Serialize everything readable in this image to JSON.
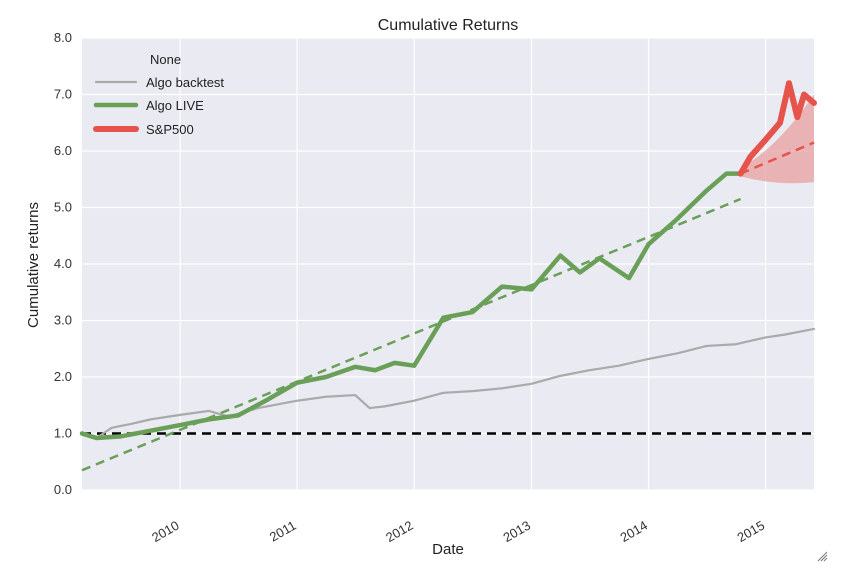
{
  "chart_data": {
    "type": "line",
    "title": "Cumulative Returns",
    "xlabel": "Date",
    "ylabel": "Cumulative returns",
    "xlim": [
      "2009-03-01",
      "2015-06-01"
    ],
    "ylim": [
      0,
      8
    ],
    "yticks": [
      "0.0",
      "1.0",
      "2.0",
      "3.0",
      "4.0",
      "5.0",
      "6.0",
      "7.0",
      "8.0"
    ],
    "xticks": [
      {
        "date": "2010-01-01",
        "label": "2010"
      },
      {
        "date": "2011-01-01",
        "label": "2011"
      },
      {
        "date": "2012-01-01",
        "label": "2012"
      },
      {
        "date": "2013-01-01",
        "label": "2013"
      },
      {
        "date": "2014-01-01",
        "label": "2014"
      },
      {
        "date": "2015-01-01",
        "label": "2015"
      }
    ],
    "grid": true,
    "legend": {
      "title": "None",
      "position": "top-left"
    },
    "colors": {
      "background": "#eaeaf2",
      "grid": "#ffffff",
      "backtest": "#aaaaaa",
      "live": "#6a9f58",
      "sp500": "#e5534b",
      "band": "#e8a0a0",
      "baseline": "#000000"
    },
    "series": [
      {
        "name": "Algo backtest",
        "points": [
          [
            "2009-03-01",
            1.02
          ],
          [
            "2009-04-15",
            0.92
          ],
          [
            "2009-06-01",
            1.1
          ],
          [
            "2009-08-01",
            1.17
          ],
          [
            "2009-10-01",
            1.25
          ],
          [
            "2010-01-01",
            1.33
          ],
          [
            "2010-04-01",
            1.4
          ],
          [
            "2010-06-01",
            1.3
          ],
          [
            "2010-09-01",
            1.45
          ],
          [
            "2011-01-01",
            1.58
          ],
          [
            "2011-04-01",
            1.65
          ],
          [
            "2011-07-01",
            1.68
          ],
          [
            "2011-08-15",
            1.45
          ],
          [
            "2011-10-01",
            1.48
          ],
          [
            "2012-01-01",
            1.58
          ],
          [
            "2012-04-01",
            1.72
          ],
          [
            "2012-07-01",
            1.75
          ],
          [
            "2012-10-01",
            1.8
          ],
          [
            "2013-01-01",
            1.88
          ],
          [
            "2013-04-01",
            2.02
          ],
          [
            "2013-07-01",
            2.12
          ],
          [
            "2013-10-01",
            2.2
          ],
          [
            "2014-01-01",
            2.32
          ],
          [
            "2014-04-01",
            2.42
          ],
          [
            "2014-07-01",
            2.55
          ],
          [
            "2014-10-01",
            2.58
          ],
          [
            "2015-01-01",
            2.7
          ],
          [
            "2015-03-01",
            2.75
          ],
          [
            "2015-06-01",
            2.85
          ]
        ]
      },
      {
        "name": "Algo LIVE",
        "points": [
          [
            "2009-03-01",
            1.0
          ],
          [
            "2009-04-15",
            0.92
          ],
          [
            "2009-07-01",
            0.95
          ],
          [
            "2009-10-01",
            1.05
          ],
          [
            "2010-01-01",
            1.15
          ],
          [
            "2010-04-01",
            1.25
          ],
          [
            "2010-07-01",
            1.32
          ],
          [
            "2010-10-01",
            1.6
          ],
          [
            "2011-01-01",
            1.9
          ],
          [
            "2011-04-01",
            2.0
          ],
          [
            "2011-07-01",
            2.18
          ],
          [
            "2011-09-01",
            2.12
          ],
          [
            "2011-11-01",
            2.25
          ],
          [
            "2012-01-01",
            2.2
          ],
          [
            "2012-04-01",
            3.05
          ],
          [
            "2012-07-01",
            3.15
          ],
          [
            "2012-10-01",
            3.6
          ],
          [
            "2013-01-01",
            3.55
          ],
          [
            "2013-04-01",
            4.15
          ],
          [
            "2013-06-01",
            3.85
          ],
          [
            "2013-08-01",
            4.1
          ],
          [
            "2013-11-01",
            3.75
          ],
          [
            "2014-01-01",
            4.35
          ],
          [
            "2014-04-01",
            4.8
          ],
          [
            "2014-07-01",
            5.3
          ],
          [
            "2014-09-01",
            5.6
          ],
          [
            "2014-10-15",
            5.6
          ]
        ]
      },
      {
        "name": "S&P500",
        "points": [
          [
            "2014-10-15",
            5.6
          ],
          [
            "2014-11-15",
            5.9
          ],
          [
            "2015-01-01",
            6.2
          ],
          [
            "2015-02-15",
            6.5
          ],
          [
            "2015-03-15",
            7.2
          ],
          [
            "2015-04-10",
            6.6
          ],
          [
            "2015-05-01",
            7.0
          ],
          [
            "2015-06-01",
            6.85
          ]
        ]
      }
    ],
    "trend_in_sample": [
      [
        "2009-03-01",
        0.35
      ],
      [
        "2014-10-15",
        5.15
      ]
    ],
    "trend_out_of_sample": [
      [
        "2014-10-15",
        5.6
      ],
      [
        "2015-06-01",
        6.15
      ]
    ],
    "cone": {
      "upper": [
        [
          "2014-10-15",
          5.7
        ],
        [
          "2015-06-01",
          7.0
        ]
      ],
      "lower": [
        [
          "2014-10-15",
          5.55
        ],
        [
          "2015-06-01",
          5.45
        ]
      ]
    },
    "baseline": 1.0
  }
}
